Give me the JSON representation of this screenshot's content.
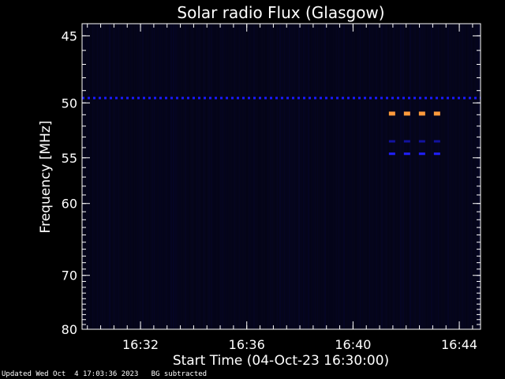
{
  "chart_data": {
    "type": "heatmap",
    "title": "Solar radio Flux (Glasgow)",
    "xlabel": "Start Time (04-Oct-23 16:30:00)",
    "ylabel": "Frequency [MHz]",
    "x_ticks": [
      "16:32",
      "16:36",
      "16:40",
      "16:44"
    ],
    "x_tick_minutes": [
      2,
      6,
      10,
      14
    ],
    "xlim_minutes": [
      -0.2,
      14.8
    ],
    "y_ticks": [
      45,
      50,
      55,
      60,
      70,
      80
    ],
    "ylim": [
      44.2,
      80
    ],
    "y_scale": "reciprocal",
    "grid": false,
    "features": [
      {
        "name": "persistent-line-49.6",
        "freq": 49.6,
        "start": -0.2,
        "end": 14.8,
        "color": "#1a1aff",
        "dashed": true
      },
      {
        "name": "burst-51",
        "freq": 50.9,
        "start": 11.35,
        "end": 13.5,
        "color": "#ff9a3c",
        "dashed": true
      },
      {
        "name": "line-53.5",
        "freq": 53.4,
        "start": 11.35,
        "end": 13.5,
        "color": "#1212a0",
        "dashed": true
      },
      {
        "name": "line-54.7",
        "freq": 54.6,
        "start": 11.35,
        "end": 13.5,
        "color": "#2020ff",
        "dashed": true
      }
    ]
  },
  "footer": {
    "updated": "Updated Wed Oct  4 17:03:36 2023",
    "note": "BG subtracted"
  },
  "colors": {
    "background": "#000000",
    "plot_background": "#05051a",
    "axis": "#ffffff"
  }
}
